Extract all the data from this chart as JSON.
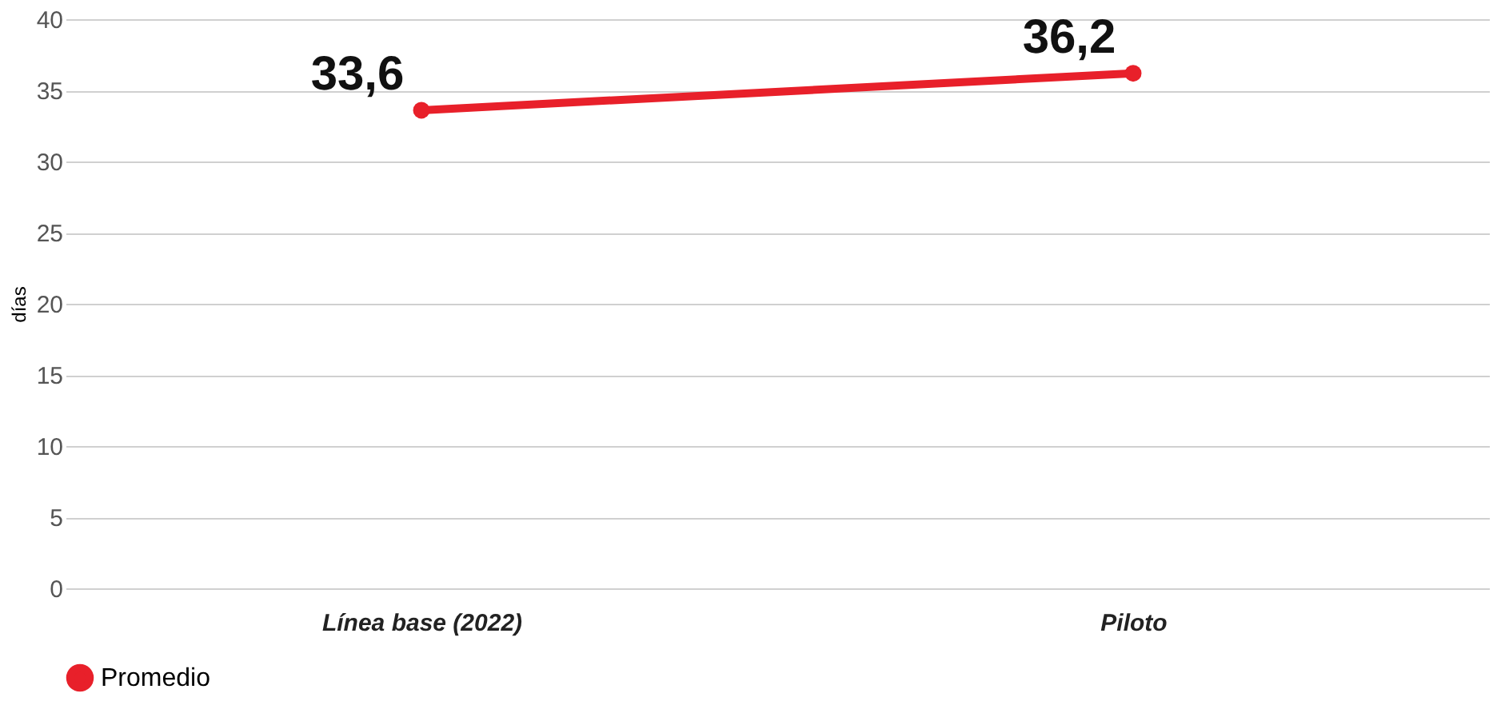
{
  "chart_data": {
    "type": "line",
    "ylabel": "días",
    "categories": [
      "Línea base (2022)",
      "Piloto"
    ],
    "series": [
      {
        "name": "Promedio",
        "color": "#e8202a",
        "values": [
          33.6,
          36.2
        ],
        "value_labels": [
          "33,6",
          "36,2"
        ]
      }
    ],
    "ylim": [
      0,
      40
    ],
    "yticks": [
      0,
      5,
      10,
      15,
      20,
      25,
      30,
      35,
      40
    ],
    "grid": "y",
    "legend": "bottom",
    "marker": "circle",
    "line_style": "solid"
  }
}
